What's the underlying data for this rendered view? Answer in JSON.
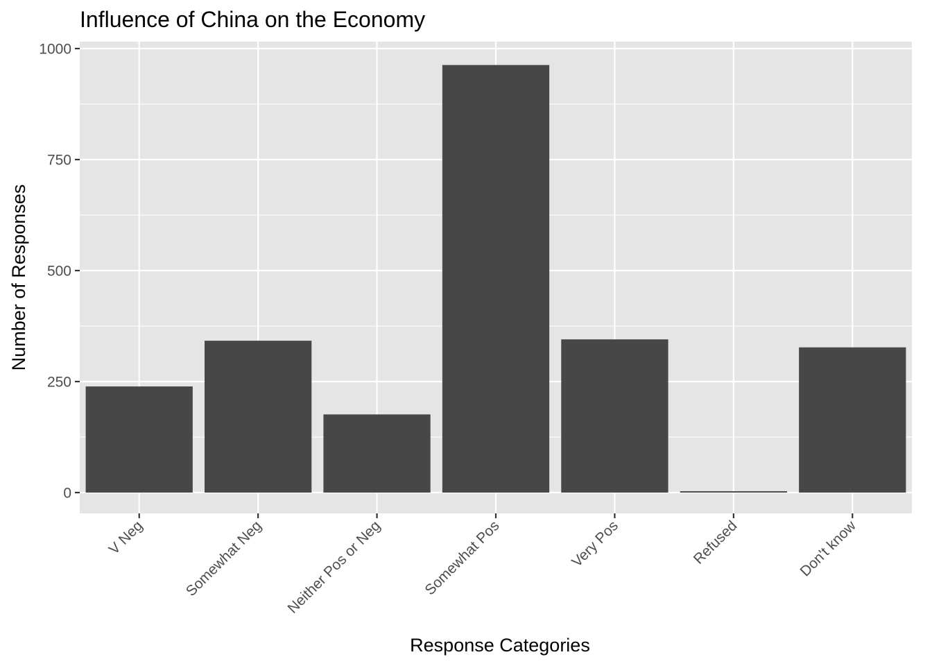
{
  "chart_data": {
    "type": "bar",
    "title": "Influence of China on the Economy",
    "xlabel": "Response Categories",
    "ylabel": "Number of Responses",
    "categories": [
      "V Neg",
      "Somewhat Neg",
      "Neither Pos or Neg",
      "Somewhat Pos",
      "Very Pos",
      "Refused",
      "Don't know"
    ],
    "values": [
      239,
      342,
      176,
      963,
      345,
      3,
      327
    ],
    "yticks": [
      0,
      250,
      500,
      750,
      1000
    ],
    "ylim": [
      -48,
      1011
    ],
    "grid": true,
    "colors": {
      "bar": "#474747",
      "panel": "#E5E5E5",
      "grid": "#FFFFFF",
      "tick_text": "#4D4D4D",
      "tick_mark": "#333333"
    }
  }
}
